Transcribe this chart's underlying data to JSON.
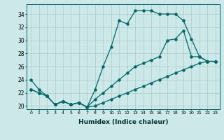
{
  "xlabel": "Humidex (Indice chaleur)",
  "background_color": "#cce8e8",
  "grid_color": "#aacccc",
  "line_color": "#006666",
  "xlim": [
    -0.5,
    23.5
  ],
  "ylim": [
    19.5,
    35.5
  ],
  "yticks": [
    20,
    22,
    24,
    26,
    28,
    30,
    32,
    34
  ],
  "xticks": [
    0,
    1,
    2,
    3,
    4,
    5,
    6,
    7,
    8,
    9,
    10,
    11,
    12,
    13,
    14,
    15,
    16,
    17,
    18,
    19,
    20,
    21,
    22,
    23
  ],
  "line1_x": [
    0,
    1,
    2,
    3,
    4,
    5,
    6,
    7,
    8,
    9,
    10,
    11,
    12,
    13,
    14,
    15,
    16,
    17,
    18,
    19,
    20,
    21,
    22,
    23
  ],
  "line1_y": [
    24,
    22.5,
    21.5,
    20.2,
    20.7,
    20.2,
    20.5,
    19.8,
    22.5,
    26,
    29,
    33,
    32.5,
    34.5,
    34.5,
    34.5,
    34,
    34,
    34,
    33,
    30.2,
    27.5,
    26.8,
    26.8
  ],
  "line2_x": [
    0,
    1,
    2,
    3,
    4,
    5,
    6,
    7,
    8,
    9,
    10,
    11,
    12,
    13,
    14,
    15,
    16,
    17,
    18,
    19,
    20,
    21,
    22,
    23
  ],
  "line2_y": [
    22.5,
    22,
    21.5,
    20.2,
    20.7,
    20.2,
    20.5,
    19.8,
    21,
    22,
    23,
    24,
    25,
    26,
    26.5,
    27,
    27.5,
    30,
    30.2,
    31.5,
    27.5,
    27.5,
    26.8,
    26.8
  ],
  "line3_x": [
    0,
    1,
    2,
    3,
    4,
    5,
    6,
    7,
    8,
    9,
    10,
    11,
    12,
    13,
    14,
    15,
    16,
    17,
    18,
    19,
    20,
    21,
    22,
    23
  ],
  "line3_y": [
    22.5,
    22,
    21.5,
    20.2,
    20.7,
    20.2,
    20.5,
    19.8,
    20,
    20.5,
    21,
    21.5,
    22,
    22.5,
    23,
    23.5,
    24,
    24.5,
    25,
    25.5,
    26,
    26.5,
    26.8,
    26.8
  ]
}
